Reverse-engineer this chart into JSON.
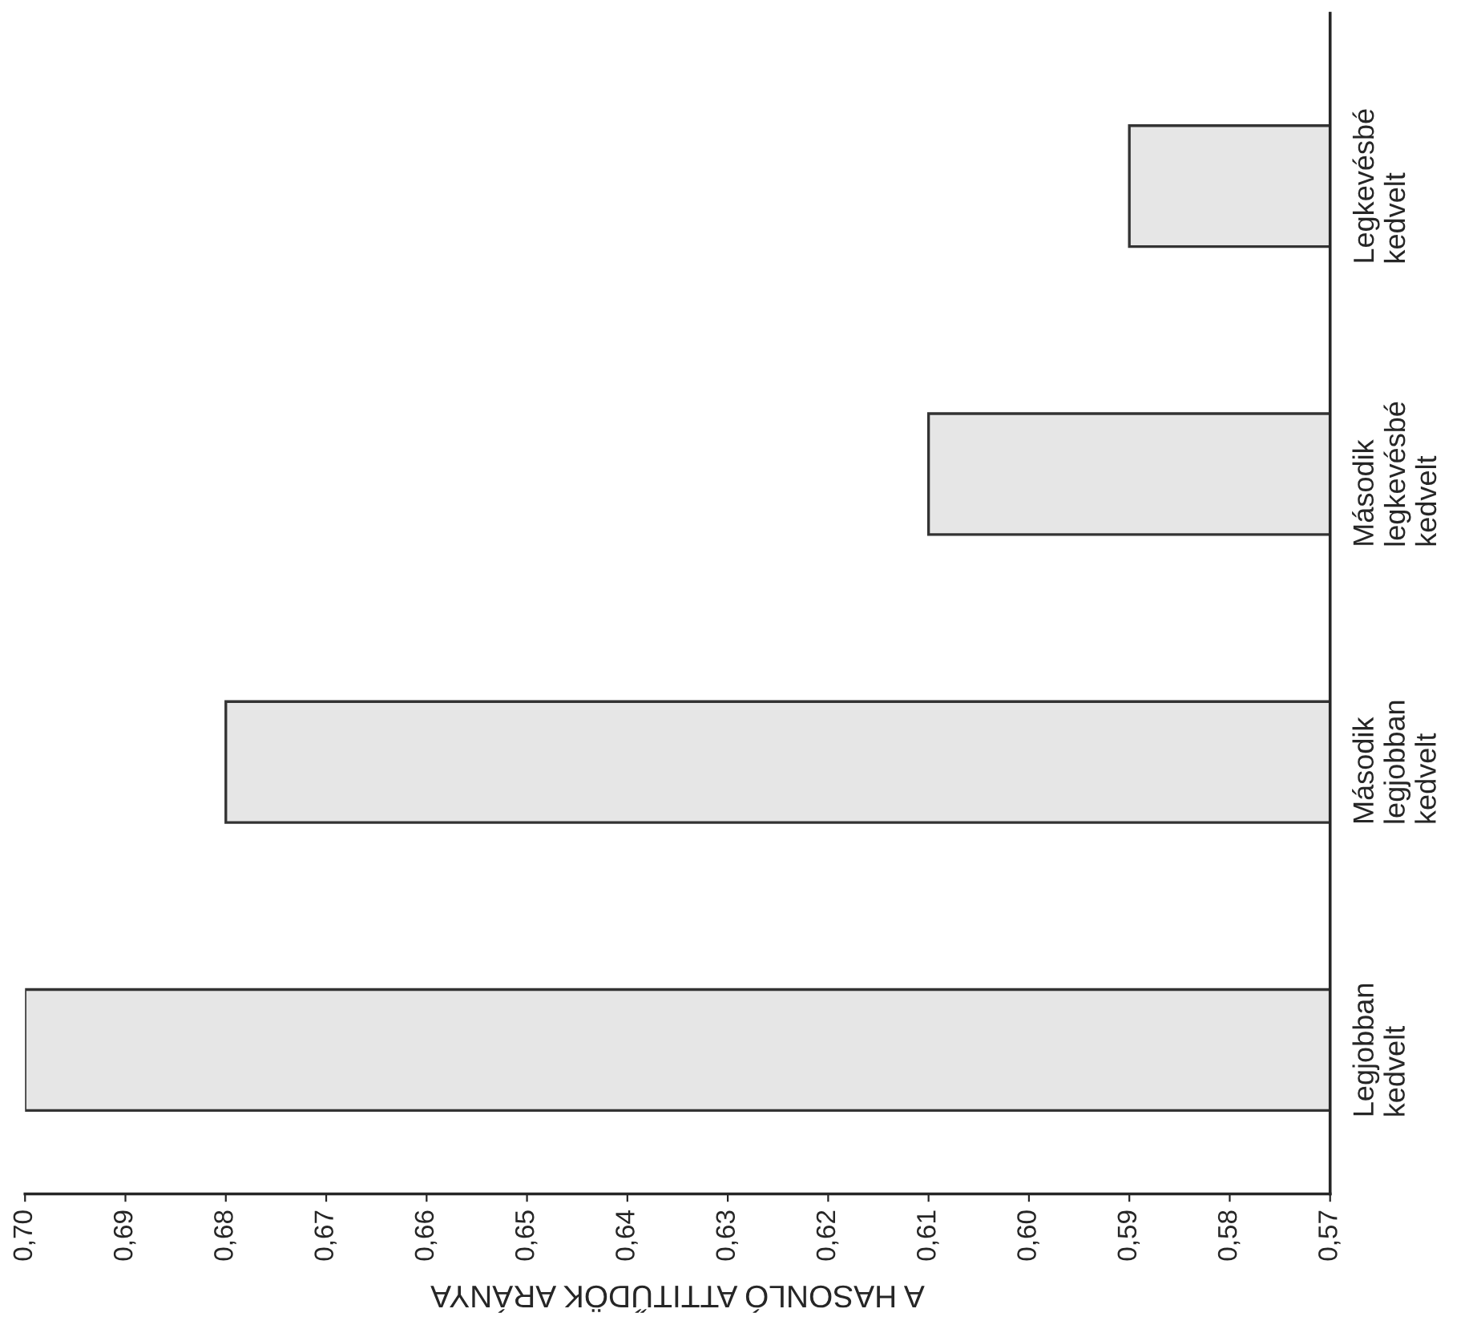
{
  "chart_data": {
    "type": "bar",
    "orientation": "horizontal",
    "categories": [
      "Legkevésbé\nkedvelt",
      "Második\nlegkevésbé\nkedvelt",
      "Második\nlegjobban\nkedvelt",
      "Legjobban\nkedvelt"
    ],
    "values": [
      0.59,
      0.61,
      0.68,
      0.7
    ],
    "color": "#e6e6e6",
    "xlabel": "A HASONLÓ ATTITŰDÖK ARÁNYA",
    "xlim": [
      0.7,
      0.57
    ],
    "xticks": [
      {
        "value": 0.7,
        "label": "0,70"
      },
      {
        "value": 0.69,
        "label": "0,69"
      },
      {
        "value": 0.68,
        "label": "0,68"
      },
      {
        "value": 0.67,
        "label": "0,67"
      },
      {
        "value": 0.66,
        "label": "0,66"
      },
      {
        "value": 0.65,
        "label": "0,65"
      },
      {
        "value": 0.64,
        "label": "0,64"
      },
      {
        "value": 0.63,
        "label": "0,63"
      },
      {
        "value": 0.62,
        "label": "0,62"
      },
      {
        "value": 0.61,
        "label": "0,61"
      },
      {
        "value": 0.6,
        "label": "0,60"
      },
      {
        "value": 0.59,
        "label": "0,59"
      },
      {
        "value": 0.58,
        "label": "0,58"
      },
      {
        "value": 0.57,
        "label": "0,57"
      }
    ],
    "grid": false,
    "legend": false
  }
}
